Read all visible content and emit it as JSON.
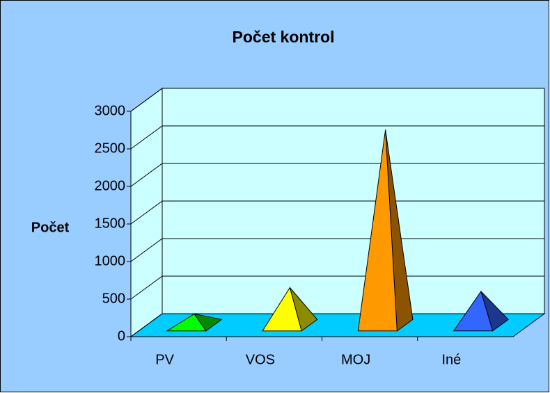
{
  "chart_data": {
    "type": "pyramid3d",
    "title": "Počet kontrol",
    "y_label": "Počet",
    "categories": [
      "PV",
      "VOS",
      "MOJ",
      "Iné"
    ],
    "values": [
      150,
      500,
      2600,
      450
    ],
    "colors": [
      "#00ff00",
      "#ffff00",
      "#ff9900",
      "#3366ff"
    ],
    "ylim": [
      0,
      3000
    ],
    "yticks": [
      0,
      500,
      1000,
      1500,
      2000,
      2500,
      3000
    ],
    "grid": true
  }
}
